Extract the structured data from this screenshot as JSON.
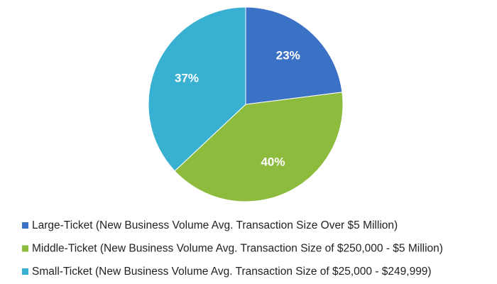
{
  "chart_data": {
    "type": "pie",
    "categories": [
      "Large-Ticket (New Business Volume Avg. Transaction Size Over $5 Million)",
      "Middle-Ticket (New Business Volume  Avg. Transaction Size of $250,000 - $5 Million)",
      "Small-Ticket (New Business Volume Avg. Transaction Size of $25,000 - $249,999)"
    ],
    "values": [
      23,
      40,
      37
    ],
    "value_labels": [
      "23%",
      "40%",
      "37%"
    ],
    "colors": [
      "#3c72c6",
      "#8dbb3e",
      "#38b0d2"
    ],
    "legend": "bottom"
  }
}
